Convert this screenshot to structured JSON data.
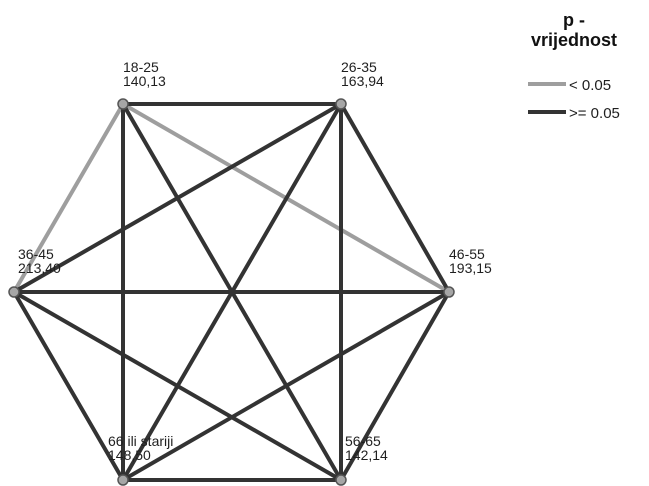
{
  "colors": {
    "significant": "#9e9e9e",
    "not_significant": "#333333",
    "node_fill": "#a6a6a6",
    "node_stroke": "#555555"
  },
  "nodes": [
    {
      "id": "18-25",
      "group": "18-25",
      "value": "140,13"
    },
    {
      "id": "26-35",
      "group": "26-35",
      "value": "163,94"
    },
    {
      "id": "36-45",
      "group": "36-45",
      "value": "213,40"
    },
    {
      "id": "46-55",
      "group": "46-55",
      "value": "193,15"
    },
    {
      "id": "66+",
      "group": "66 ili stariji",
      "value": "148,50"
    },
    {
      "id": "56-65",
      "group": "56-65",
      "value": "142,14"
    }
  ],
  "edges": [
    {
      "from": "18-25",
      "to": "36-45",
      "type": "significant"
    },
    {
      "from": "18-25",
      "to": "46-55",
      "type": "significant"
    },
    {
      "from": "18-25",
      "to": "26-35",
      "type": "not_significant"
    },
    {
      "from": "18-25",
      "to": "66+",
      "type": "not_significant"
    },
    {
      "from": "18-25",
      "to": "56-65",
      "type": "not_significant"
    },
    {
      "from": "26-35",
      "to": "36-45",
      "type": "not_significant"
    },
    {
      "from": "26-35",
      "to": "46-55",
      "type": "not_significant"
    },
    {
      "from": "26-35",
      "to": "56-65",
      "type": "not_significant"
    },
    {
      "from": "26-35",
      "to": "66+",
      "type": "not_significant"
    },
    {
      "from": "36-45",
      "to": "46-55",
      "type": "not_significant"
    },
    {
      "from": "36-45",
      "to": "66+",
      "type": "not_significant"
    },
    {
      "from": "36-45",
      "to": "56-65",
      "type": "not_significant"
    },
    {
      "from": "46-55",
      "to": "56-65",
      "type": "not_significant"
    },
    {
      "from": "46-55",
      "to": "66+",
      "type": "not_significant"
    },
    {
      "from": "66+",
      "to": "56-65",
      "type": "not_significant"
    }
  ],
  "legend": {
    "title_line1": "p -",
    "title_line2": "vrijednost",
    "items": [
      {
        "type": "significant",
        "label": "< 0.05"
      },
      {
        "type": "not_significant",
        "label": ">= 0.05"
      }
    ]
  }
}
